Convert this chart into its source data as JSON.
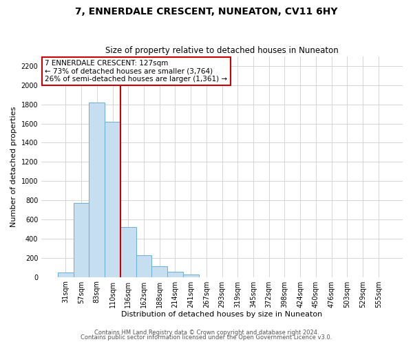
{
  "title": "7, ENNERDALE CRESCENT, NUNEATON, CV11 6HY",
  "subtitle": "Size of property relative to detached houses in Nuneaton",
  "xlabel": "Distribution of detached houses by size in Nuneaton",
  "ylabel": "Number of detached properties",
  "categories": [
    "31sqm",
    "57sqm",
    "83sqm",
    "110sqm",
    "136sqm",
    "162sqm",
    "188sqm",
    "214sqm",
    "241sqm",
    "267sqm",
    "293sqm",
    "319sqm",
    "345sqm",
    "372sqm",
    "398sqm",
    "424sqm",
    "450sqm",
    "476sqm",
    "503sqm",
    "529sqm",
    "555sqm"
  ],
  "values": [
    50,
    775,
    1820,
    1620,
    520,
    230,
    110,
    55,
    25,
    0,
    0,
    0,
    0,
    0,
    0,
    0,
    0,
    0,
    0,
    0,
    0
  ],
  "bar_color": "#c5dff0",
  "bar_edge_color": "#6aaed6",
  "vline_color": "#cc0000",
  "annotation_text": "7 ENNERDALE CRESCENT: 127sqm\n← 73% of detached houses are smaller (3,764)\n26% of semi-detached houses are larger (1,361) →",
  "annotation_box_color": "#ffffff",
  "annotation_box_edge": "#cc0000",
  "ylim": [
    0,
    2300
  ],
  "yticks": [
    0,
    200,
    400,
    600,
    800,
    1000,
    1200,
    1400,
    1600,
    1800,
    2000,
    2200
  ],
  "footer_line1": "Contains HM Land Registry data © Crown copyright and database right 2024.",
  "footer_line2": "Contains public sector information licensed under the Open Government Licence v3.0.",
  "bg_color": "#ffffff",
  "grid_color": "#d0d0d0",
  "title_fontsize": 10,
  "subtitle_fontsize": 8.5,
  "label_fontsize": 8,
  "tick_fontsize": 7,
  "annotation_fontsize": 7.5,
  "footer_fontsize": 6
}
